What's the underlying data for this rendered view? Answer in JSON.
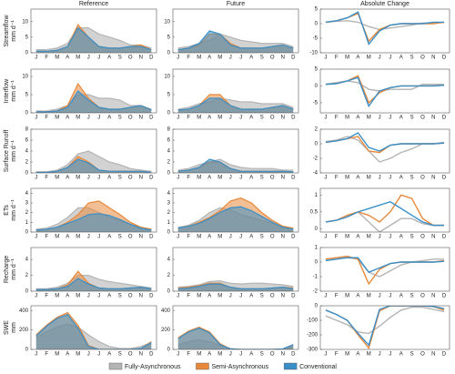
{
  "columns": [
    "Reference",
    "Future",
    "Absolute Change"
  ],
  "categories": [
    "J",
    "F",
    "M",
    "A",
    "M",
    "J",
    "J",
    "A",
    "S",
    "O",
    "N",
    "D"
  ],
  "legend": [
    {
      "name": "Fully-Asynchronous",
      "color": "#b4b4b4"
    },
    {
      "name": "Semi-Asynchronous",
      "color": "#e8883a"
    },
    {
      "name": "Conventional",
      "color": "#3a8fc8"
    }
  ],
  "chart_data": [
    {
      "type": "area",
      "ylabel": "Streamflow",
      "yunit": "mm d⁻¹",
      "ylim": [
        0,
        14
      ],
      "yticks": [
        0,
        5,
        10
      ],
      "series": [
        {
          "values": [
            1,
            1,
            1.5,
            3,
            8,
            8,
            6,
            5,
            4,
            2.5,
            2.5,
            1.5
          ]
        },
        {
          "values": [
            0.5,
            0.5,
            0.8,
            2,
            9,
            5,
            2,
            1.5,
            1.5,
            2,
            2.5,
            1
          ]
        },
        {
          "values": [
            0.5,
            0.5,
            0.8,
            2,
            8,
            5,
            2,
            1.5,
            1.5,
            2,
            2,
            1
          ]
        }
      ]
    },
    {
      "type": "area",
      "ylim": [
        0,
        14
      ],
      "yticks": [
        0,
        5,
        10
      ],
      "series": [
        {
          "values": [
            1.5,
            2,
            3,
            4,
            6,
            5,
            4,
            3.5,
            3,
            3,
            3,
            2
          ]
        },
        {
          "values": [
            1,
            1.5,
            2.5,
            6,
            6,
            3,
            1.5,
            1.5,
            1.5,
            2,
            2.5,
            1.5
          ]
        },
        {
          "values": [
            1,
            1.5,
            3,
            7,
            6,
            2.5,
            1.5,
            1.5,
            1.5,
            2,
            2.5,
            1.5
          ]
        }
      ]
    },
    {
      "type": "line",
      "ylim": [
        -10,
        5
      ],
      "yticks": [
        -10,
        -5,
        0,
        5
      ],
      "series": [
        {
          "values": [
            0.5,
            0.8,
            1,
            0.5,
            -1,
            -2,
            -1.5,
            -1,
            -0.5,
            0.2,
            0.3,
            0.5
          ]
        },
        {
          "values": [
            0.5,
            1,
            2,
            3.5,
            -6,
            -2,
            -0.5,
            0,
            0,
            0,
            0,
            0.5
          ]
        },
        {
          "values": [
            0.5,
            1,
            2,
            4,
            -7,
            -2.5,
            -0.5,
            0,
            0,
            0,
            0.5,
            0.5
          ]
        }
      ]
    },
    {
      "type": "area",
      "ylabel": "Interflow",
      "yunit": "mm d⁻¹",
      "ylim": [
        0,
        12
      ],
      "yticks": [
        0,
        5,
        10
      ],
      "series": [
        {
          "values": [
            0.5,
            0.5,
            1,
            2,
            5,
            5,
            4,
            4,
            3.5,
            2,
            2,
            1
          ]
        },
        {
          "values": [
            0.3,
            0.3,
            0.5,
            2,
            8,
            4,
            1.5,
            1,
            1,
            1.5,
            2,
            0.8
          ]
        },
        {
          "values": [
            0.3,
            0.3,
            0.5,
            1.5,
            6,
            3.5,
            1.5,
            1,
            1,
            1.5,
            2,
            0.8
          ]
        }
      ]
    },
    {
      "type": "area",
      "ylim": [
        0,
        12
      ],
      "yticks": [
        0,
        5,
        10
      ],
      "series": [
        {
          "values": [
            1,
            1.5,
            2.5,
            3,
            4,
            3.5,
            3,
            3,
            2.5,
            2.5,
            2.5,
            1.5
          ]
        },
        {
          "values": [
            0.8,
            1,
            2,
            5,
            5,
            2,
            1,
            1,
            1,
            1.5,
            2,
            1
          ]
        },
        {
          "values": [
            0.8,
            1,
            2,
            4,
            4,
            2,
            1,
            1,
            1,
            1.5,
            2,
            1
          ]
        }
      ]
    },
    {
      "type": "line",
      "ylim": [
        -8,
        5
      ],
      "yticks": [
        -5,
        0,
        5
      ],
      "series": [
        {
          "values": [
            0.5,
            1,
            1.5,
            1,
            -1,
            -1.5,
            -1,
            -1,
            -1,
            0.5,
            0.5,
            0.5
          ]
        },
        {
          "values": [
            0.5,
            0.7,
            1.5,
            3,
            -5,
            -2,
            -0.5,
            0,
            0,
            0,
            0,
            0.2
          ]
        },
        {
          "values": [
            0.5,
            0.7,
            1.5,
            2.5,
            -6,
            -1.5,
            -0.5,
            0,
            0,
            0,
            0,
            0.2
          ]
        }
      ]
    },
    {
      "type": "area",
      "ylabel": "Surface Runoff",
      "yunit": "mm d⁻¹",
      "ylim": [
        0,
        8
      ],
      "yticks": [
        0,
        2,
        4,
        6,
        8
      ],
      "series": [
        {
          "values": [
            0.2,
            0.2,
            0.5,
            1.5,
            3.5,
            4,
            3,
            2,
            1.5,
            0.8,
            0.5,
            0.3
          ]
        },
        {
          "values": [
            0.1,
            0.1,
            0.3,
            1,
            3,
            2,
            0.5,
            0.3,
            0.3,
            0.3,
            0.3,
            0.1
          ]
        },
        {
          "values": [
            0.1,
            0.1,
            0.3,
            1,
            2.5,
            1.8,
            0.5,
            0.3,
            0.3,
            0.3,
            0.3,
            0.1
          ]
        }
      ]
    },
    {
      "type": "area",
      "ylim": [
        0,
        8
      ],
      "yticks": [
        0,
        2,
        4,
        6,
        8
      ],
      "series": [
        {
          "values": [
            0.5,
            0.8,
            1.5,
            2,
            2.5,
            1.5,
            1,
            0.8,
            0.8,
            0.8,
            0.5,
            0.5
          ]
        },
        {
          "values": [
            0.3,
            0.5,
            1,
            2,
            2,
            0.8,
            0.3,
            0.3,
            0.3,
            0.3,
            0.3,
            0.2
          ]
        },
        {
          "values": [
            0.3,
            0.5,
            1,
            2.5,
            2,
            0.8,
            0.3,
            0.3,
            0.3,
            0.3,
            0.3,
            0.2
          ]
        }
      ]
    },
    {
      "type": "line",
      "ylim": [
        -4,
        2
      ],
      "yticks": [
        -4,
        -2,
        0,
        2
      ],
      "series": [
        {
          "values": [
            0.3,
            0.5,
            1,
            0.5,
            -1,
            -2.5,
            -2,
            -1.2,
            -0.7,
            0,
            0,
            0.2
          ]
        },
        {
          "values": [
            0.2,
            0.4,
            0.7,
            1,
            -1,
            -1.2,
            -0.2,
            0,
            0,
            0,
            0,
            0.1
          ]
        },
        {
          "values": [
            0.2,
            0.4,
            0.7,
            1.5,
            -0.5,
            -1,
            -0.2,
            0,
            0,
            0,
            0,
            0.1
          ]
        }
      ]
    },
    {
      "type": "area",
      "ylabel": "ETs",
      "yunit": "mm d⁻¹",
      "ylim": [
        0,
        4.5
      ],
      "yticks": [
        0,
        1,
        2,
        3,
        4
      ],
      "series": [
        {
          "values": [
            0.3,
            0.4,
            0.8,
            1.5,
            2.5,
            2.5,
            2,
            1.5,
            1.2,
            0.8,
            0.5,
            0.3
          ]
        },
        {
          "values": [
            0.2,
            0.3,
            0.5,
            1,
            1.8,
            3,
            3.2,
            2.5,
            1.8,
            1,
            0.5,
            0.3
          ]
        },
        {
          "values": [
            0.2,
            0.3,
            0.5,
            0.9,
            1.3,
            1.8,
            1.9,
            1.7,
            1.3,
            0.8,
            0.4,
            0.2
          ]
        }
      ]
    },
    {
      "type": "area",
      "ylim": [
        0,
        4.5
      ],
      "yticks": [
        0,
        1,
        2,
        3,
        4
      ],
      "series": [
        {
          "values": [
            0.5,
            0.7,
            1.2,
            2,
            2.5,
            2.3,
            1.8,
            1.5,
            1.2,
            0.9,
            0.6,
            0.4
          ]
        },
        {
          "values": [
            0.4,
            0.6,
            1,
            1.5,
            2.2,
            3.2,
            3.5,
            3,
            2,
            1.2,
            0.6,
            0.4
          ]
        },
        {
          "values": [
            0.4,
            0.6,
            0.9,
            1.4,
            2,
            2.5,
            2.6,
            2.2,
            1.6,
            1,
            0.5,
            0.3
          ]
        }
      ]
    },
    {
      "type": "line",
      "ylim": [
        -0.1,
        1.2
      ],
      "yticks": [
        0,
        0.5,
        1
      ],
      "series": [
        {
          "values": [
            0.2,
            0.25,
            0.35,
            0.5,
            0.2,
            -0.1,
            0.1,
            0.3,
            0.3,
            0.15,
            0.1,
            0.1
          ]
        },
        {
          "values": [
            0.2,
            0.25,
            0.4,
            0.5,
            0.4,
            0.2,
            0.5,
            1,
            0.9,
            0.3,
            0.1,
            0.1
          ]
        },
        {
          "values": [
            0.2,
            0.25,
            0.35,
            0.5,
            0.6,
            0.7,
            0.8,
            0.6,
            0.4,
            0.2,
            0.1,
            0.1
          ]
        }
      ]
    },
    {
      "type": "area",
      "ylabel": "Recharge",
      "yunit": "mm d⁻¹",
      "ylim": [
        0,
        5.5
      ],
      "yticks": [
        0,
        2,
        4
      ],
      "series": [
        {
          "values": [
            0.3,
            0.3,
            0.5,
            1,
            2,
            2,
            1.5,
            1.2,
            1,
            0.8,
            0.6,
            0.4
          ]
        },
        {
          "values": [
            0.2,
            0.2,
            0.3,
            0.8,
            2.5,
            1,
            0.4,
            0.3,
            0.3,
            0.4,
            0.5,
            0.3
          ]
        },
        {
          "values": [
            0.2,
            0.2,
            0.3,
            0.6,
            1.6,
            0.9,
            0.4,
            0.3,
            0.3,
            0.4,
            0.5,
            0.3
          ]
        }
      ]
    },
    {
      "type": "area",
      "ylim": [
        0,
        5.5
      ],
      "yticks": [
        0,
        2,
        4
      ],
      "series": [
        {
          "values": [
            0.5,
            0.6,
            0.8,
            1.2,
            1.3,
            1,
            0.9,
            1,
            1,
            0.9,
            0.8,
            0.6
          ]
        },
        {
          "values": [
            0.4,
            0.5,
            0.7,
            1,
            1,
            0.5,
            0.3,
            0.3,
            0.3,
            0.4,
            0.5,
            0.4
          ]
        },
        {
          "values": [
            0.3,
            0.4,
            0.6,
            0.9,
            0.9,
            0.5,
            0.3,
            0.3,
            0.3,
            0.4,
            0.5,
            0.3
          ]
        }
      ]
    },
    {
      "type": "line",
      "ylim": [
        -2,
        1
      ],
      "yticks": [
        -2,
        -1,
        0,
        1
      ],
      "series": [
        {
          "values": [
            0.2,
            0.3,
            0.3,
            0.2,
            -0.7,
            -1,
            -0.6,
            -0.2,
            0,
            0.1,
            0.2,
            0.2
          ]
        },
        {
          "values": [
            0.2,
            0.3,
            0.4,
            0.2,
            -1.5,
            -0.5,
            -0.1,
            0,
            0,
            0,
            0,
            0.1
          ]
        },
        {
          "values": [
            0.1,
            0.2,
            0.3,
            0.3,
            -0.7,
            -0.4,
            -0.1,
            0,
            0,
            0,
            0,
            0.05
          ]
        }
      ]
    },
    {
      "type": "area",
      "ylabel": "SWE",
      "yunit": "mm",
      "ylim": [
        0,
        450
      ],
      "yticks": [
        0,
        200,
        400
      ],
      "series": [
        {
          "values": [
            120,
            180,
            230,
            260,
            230,
            150,
            80,
            30,
            10,
            10,
            30,
            70
          ]
        },
        {
          "values": [
            150,
            250,
            330,
            380,
            250,
            40,
            0,
            0,
            0,
            0,
            10,
            80
          ]
        },
        {
          "values": [
            140,
            240,
            320,
            360,
            220,
            30,
            0,
            0,
            0,
            0,
            10,
            70
          ]
        }
      ]
    },
    {
      "type": "area",
      "ylim": [
        0,
        450
      ],
      "yticks": [
        0,
        200,
        400
      ],
      "series": [
        {
          "values": [
            50,
            80,
            100,
            80,
            40,
            10,
            0,
            0,
            0,
            0,
            5,
            30
          ]
        },
        {
          "values": [
            120,
            190,
            230,
            180,
            60,
            5,
            0,
            0,
            0,
            0,
            5,
            50
          ]
        },
        {
          "values": [
            110,
            180,
            220,
            170,
            50,
            5,
            0,
            0,
            0,
            0,
            5,
            50
          ]
        }
      ]
    },
    {
      "type": "line",
      "ylim": [
        -300,
        0
      ],
      "yticks": [
        -300,
        -200,
        -100,
        0
      ],
      "series": [
        {
          "values": [
            -70,
            -100,
            -130,
            -180,
            -190,
            -140,
            -80,
            -30,
            -10,
            -10,
            -25,
            -40
          ]
        },
        {
          "values": [
            -30,
            -60,
            -100,
            -200,
            -290,
            -35,
            0,
            0,
            0,
            0,
            -5,
            -30
          ]
        },
        {
          "values": [
            -30,
            -60,
            -100,
            -190,
            -270,
            -25,
            0,
            0,
            0,
            0,
            -5,
            -20
          ]
        }
      ]
    }
  ]
}
